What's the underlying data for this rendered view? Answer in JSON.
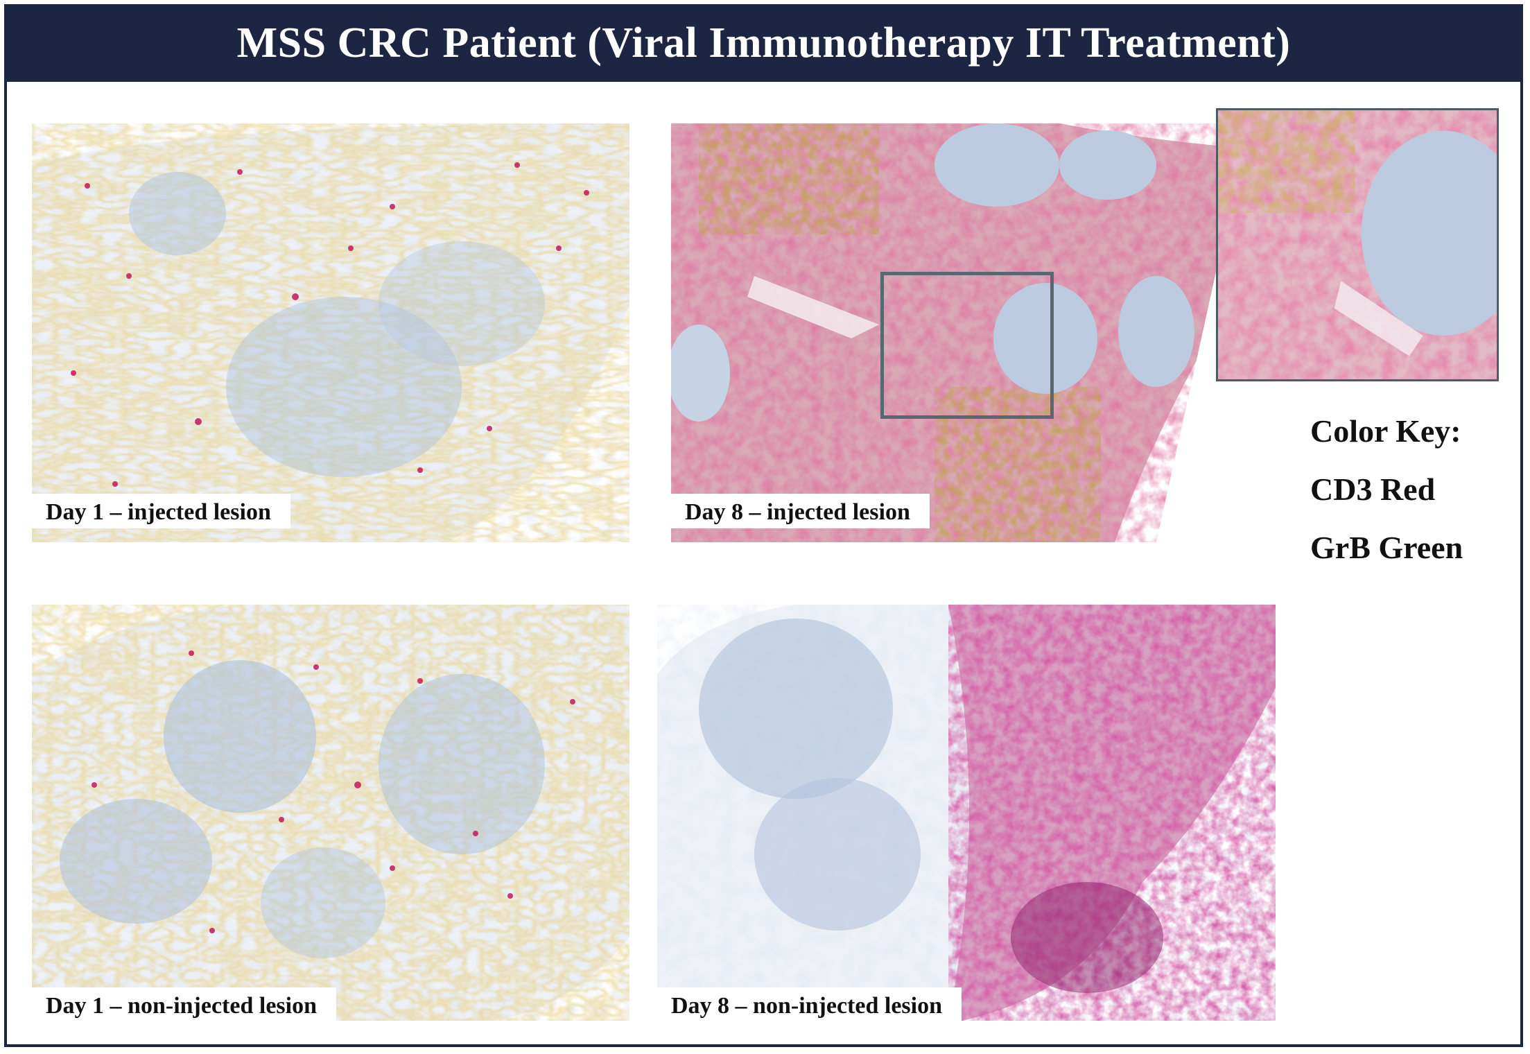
{
  "title": "MSS CRC Patient (Viral Immunotherapy IT Treatment)",
  "panels": [
    {
      "id": "day1-injected",
      "caption": "Day 1 – injected lesion"
    },
    {
      "id": "day8-injected",
      "caption": "Day 8 – injected lesion"
    },
    {
      "id": "day1-noninjected",
      "caption": "Day 1 – non-injected lesion"
    },
    {
      "id": "day8-noninjected",
      "caption": "Day 8 – non-injected lesion"
    }
  ],
  "color_key": {
    "heading": "Color Key:",
    "items": [
      "CD3 Red",
      "GrB Green"
    ]
  },
  "colors": {
    "banner": "#1c2541",
    "tissue_blue": "#b9c9dd",
    "stroma_brown": "#c9a13a",
    "cd3_red": "#c2185b",
    "dense_brown": "#8a5a1a"
  }
}
